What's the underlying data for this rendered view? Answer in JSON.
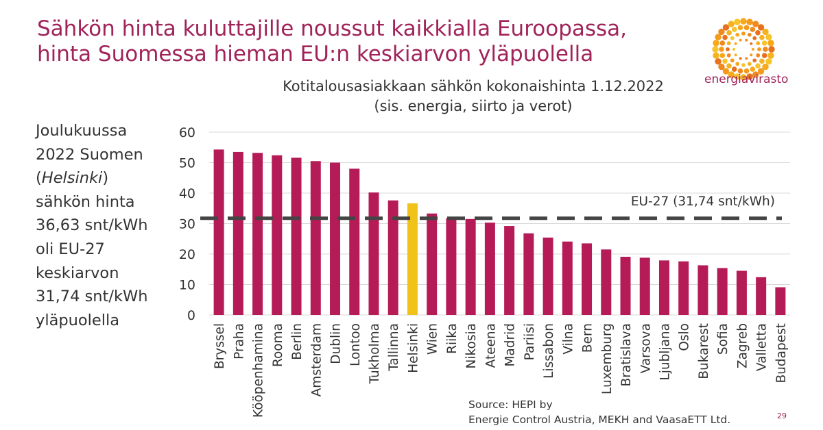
{
  "header": {
    "title_line1": "Sähkön hinta kuluttajille noussut kaikkialla Euroopassa,",
    "title_line2": "hinta Suomessa hieman EU:n keskiarvon yläpuolella"
  },
  "logo": {
    "text": "energiavirasto",
    "icon": "sunburst-logo-icon"
  },
  "sidebar": {
    "line1": "Joulukuussa",
    "line2": "2022 Suomen",
    "line3_open": "(",
    "line3_italic": "Helsinki",
    "line3_close": ")",
    "line4": "sähkön hinta",
    "line5": "36,63 snt/kWh",
    "line6": "oli EU-27",
    "line7": "keskiarvon",
    "line8": "31,74 snt/kWh",
    "line9": "yläpuolella"
  },
  "source": {
    "line1": "Source: HEPI by",
    "line2": "Energie Control Austria, MEKH and VaasaETT Ltd."
  },
  "page_number": "29",
  "colors": {
    "bar": "#b51c57",
    "highlight": "#f1c31a",
    "title": "#a0235a",
    "reference_line": "#444444",
    "grid": "#d9d9d9"
  },
  "chart_data": {
    "type": "bar",
    "title": "Kotitalousasiakkaan sähkön kokonaishinta 1.12.2022",
    "subtitle": "(sis. energia, siirto ja verot)",
    "xlabel": "",
    "ylabel": "",
    "ylim": [
      0,
      60
    ],
    "yticks": [
      0,
      10,
      20,
      30,
      40,
      50,
      60
    ],
    "grid": true,
    "highlight_category": "Helsinki",
    "categories": [
      "Bryssel",
      "Praha",
      "Kööpenhamina",
      "Rooma",
      "Berlin",
      "Amsterdam",
      "Dublin",
      "Lontoo",
      "Tukholma",
      "Tallinna",
      "Helsinki",
      "Wien",
      "Riika",
      "Nikosia",
      "Ateena",
      "Madrid",
      "Pariisi",
      "Lissabon",
      "Vilna",
      "Bern",
      "Luxemburg",
      "Bratislava",
      "Varsova",
      "Ljubljana",
      "Oslo",
      "Bukarest",
      "Sofia",
      "Zagreb",
      "Valletta",
      "Budapest"
    ],
    "values": [
      54.3,
      53.5,
      53.2,
      52.4,
      51.6,
      50.5,
      50.0,
      48.0,
      40.2,
      37.6,
      36.63,
      33.3,
      31.7,
      31.5,
      30.3,
      29.2,
      26.8,
      25.4,
      24.1,
      23.5,
      21.5,
      19.1,
      18.8,
      17.9,
      17.6,
      16.3,
      15.4,
      14.5,
      12.4,
      9.1
    ],
    "reference": {
      "label": "EU-27 (31,74 snt/kWh)",
      "value": 31.74
    }
  }
}
